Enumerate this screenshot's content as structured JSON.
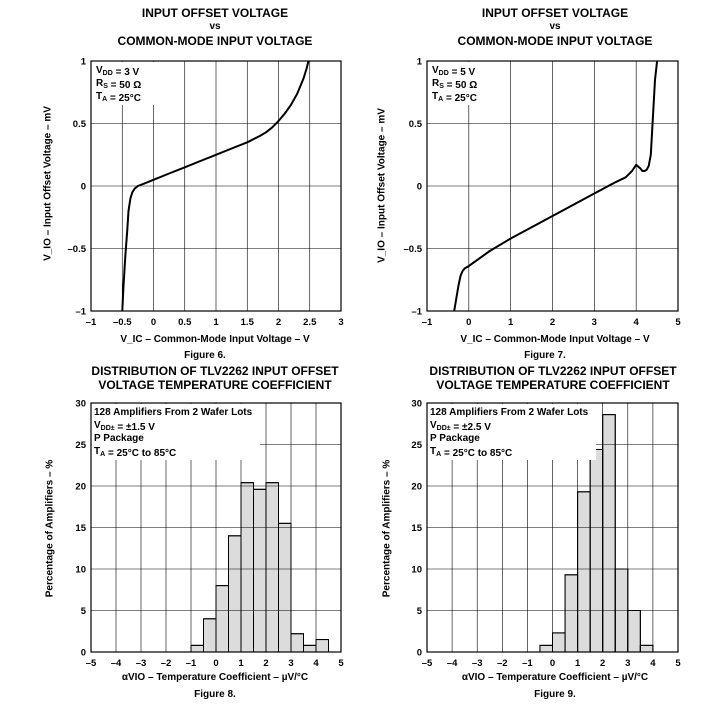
{
  "chart_data": [
    {
      "type": "line",
      "title": [
        "INPUT OFFSET VOLTAGE",
        "vs",
        "COMMON-MODE INPUT VOLTAGE"
      ],
      "figure": "Figure 6.",
      "xlabel": "V_IC – Common-Mode Input Voltage – V",
      "ylabel": "V_IO – Input Offset Voltage – mV",
      "xlim": [
        -1,
        3
      ],
      "ylim": [
        -1,
        1
      ],
      "xticks": [
        -1,
        -0.5,
        0,
        0.5,
        1,
        1.5,
        2,
        2.5,
        3
      ],
      "xtick_labels": [
        "–1",
        "–0.5",
        "0",
        "0.5",
        "1",
        "1.5",
        "2",
        "2.5",
        "3"
      ],
      "yticks": [
        -1,
        -0.5,
        0,
        0.5,
        1
      ],
      "ytick_labels": [
        "–1",
        "–0.5",
        "0",
        "0.5",
        "1"
      ],
      "grid": true,
      "annotations": [
        "V_DD = 3 V",
        "R_S = 50  Ω",
        "T_A = 25°C"
      ],
      "series": [
        {
          "name": "V_IO",
          "x": [
            -0.5,
            -0.48,
            -0.45,
            -0.42,
            -0.4,
            -0.37,
            -0.34,
            -0.3,
            -0.25,
            -0.2,
            -0.1,
            0,
            0.25,
            0.5,
            0.75,
            1,
            1.25,
            1.5,
            1.7,
            1.8,
            1.9,
            2.0,
            2.1,
            2.2,
            2.3,
            2.4,
            2.45,
            2.48
          ],
          "y": [
            -1.0,
            -0.8,
            -0.55,
            -0.35,
            -0.2,
            -0.1,
            -0.05,
            -0.02,
            0.0,
            0.01,
            0.03,
            0.05,
            0.1,
            0.15,
            0.2,
            0.25,
            0.3,
            0.35,
            0.4,
            0.43,
            0.47,
            0.52,
            0.58,
            0.65,
            0.74,
            0.86,
            0.94,
            1.0
          ]
        }
      ]
    },
    {
      "type": "line",
      "title": [
        "INPUT OFFSET VOLTAGE",
        "vs",
        "COMMON-MODE INPUT VOLTAGE"
      ],
      "figure": "Figure 7.",
      "xlabel": "V_IC – Common-Mode Input Voltage – V",
      "ylabel": "V_IO – Input Offset Voltage – mV",
      "xlim": [
        -1,
        5
      ],
      "ylim": [
        -1,
        1
      ],
      "xticks": [
        -1,
        0,
        1,
        2,
        3,
        4,
        5
      ],
      "xtick_labels": [
        "–1",
        "0",
        "1",
        "2",
        "3",
        "4",
        "5"
      ],
      "yticks": [
        -1,
        -0.5,
        0,
        0.5,
        1
      ],
      "ytick_labels": [
        "–1",
        "–0.5",
        "0",
        "0.5",
        "1"
      ],
      "grid": true,
      "annotations": [
        "V_DD = 5 V",
        "R_S = 50  Ω",
        "T_A = 25°C"
      ],
      "series": [
        {
          "name": "V_IO",
          "x": [
            -0.35,
            -0.3,
            -0.25,
            -0.2,
            -0.15,
            -0.1,
            0,
            0.5,
            1,
            1.5,
            2,
            2.5,
            3,
            3.5,
            3.75,
            3.9,
            4.0,
            4.1,
            4.15,
            4.2,
            4.25,
            4.3,
            4.35,
            4.4,
            4.45,
            4.5
          ],
          "y": [
            -1.0,
            -0.9,
            -0.8,
            -0.72,
            -0.68,
            -0.66,
            -0.64,
            -0.52,
            -0.42,
            -0.33,
            -0.24,
            -0.15,
            -0.06,
            0.03,
            0.07,
            0.12,
            0.17,
            0.14,
            0.12,
            0.12,
            0.13,
            0.16,
            0.25,
            0.55,
            0.85,
            1.0
          ]
        }
      ]
    },
    {
      "type": "bar",
      "title": [
        "DISTRIBUTION OF TLV2262 INPUT OFFSET",
        "VOLTAGE TEMPERATURE COEFFICIENT"
      ],
      "figure": "Figure 8.",
      "xlabel": "αVIO – Temperature Coefficient – µV/°C",
      "ylabel": "Percentage of Amplifiers – %",
      "xlim": [
        -5,
        5
      ],
      "ylim": [
        0,
        30
      ],
      "xticks": [
        -5,
        -4,
        -3,
        -2,
        -1,
        0,
        1,
        2,
        3,
        4,
        5
      ],
      "xtick_labels": [
        "–5",
        "–4",
        "–3",
        "–2",
        "–1",
        "0",
        "1",
        "2",
        "3",
        "4",
        "5"
      ],
      "yticks": [
        0,
        5,
        10,
        15,
        20,
        25,
        30
      ],
      "ytick_labels": [
        "0",
        "5",
        "10",
        "15",
        "20",
        "25",
        "30"
      ],
      "grid": true,
      "annotations": [
        "128 Amplifiers From 2 Wafer Lots",
        "V_DD± = ±1.5 V",
        "P Package",
        "T_A = 25°C to 85°C"
      ],
      "bin_width": 0.5,
      "bins": [
        -1.0,
        -0.5,
        0.0,
        0.5,
        1.0,
        1.5,
        2.0,
        2.5,
        3.0,
        3.5,
        4.0
      ],
      "values": [
        0.8,
        4.0,
        8.0,
        14.0,
        20.4,
        19.6,
        20.4,
        15.5,
        2.2,
        0.8,
        1.5
      ]
    },
    {
      "type": "bar",
      "title": [
        "DISTRIBUTION OF TLV2262 INPUT OFFSET",
        "VOLTAGE TEMPERATURE COEFFICIENT"
      ],
      "figure": "Figure 9.",
      "xlabel": "αVIO – Temperature Coefficient – µV/°C",
      "ylabel": "Percentage of Amplifiers – %",
      "xlim": [
        -5,
        5
      ],
      "ylim": [
        0,
        30
      ],
      "xticks": [
        -5,
        -4,
        -3,
        -2,
        -1,
        0,
        1,
        2,
        3,
        4,
        5
      ],
      "xtick_labels": [
        "–5",
        "–4",
        "–3",
        "–2",
        "–1",
        "0",
        "1",
        "2",
        "3",
        "4",
        "5"
      ],
      "yticks": [
        0,
        5,
        10,
        15,
        20,
        25,
        30
      ],
      "ytick_labels": [
        "0",
        "5",
        "10",
        "15",
        "20",
        "25",
        "30"
      ],
      "grid": true,
      "annotations": [
        "128 Amplifiers From 2 Wafer Lots",
        "V_DD± = ±2.5 V",
        "P Package",
        "T_A = 25°C to 85°C"
      ],
      "bin_width": 0.5,
      "bins": [
        -0.5,
        0.0,
        0.5,
        1.0,
        1.5,
        2.0,
        2.5,
        3.0,
        3.5,
        4.0
      ],
      "values": [
        0.8,
        2.3,
        9.3,
        19.3,
        24.4,
        28.6,
        10.0,
        5.0,
        0.8,
        0.0
      ]
    }
  ]
}
